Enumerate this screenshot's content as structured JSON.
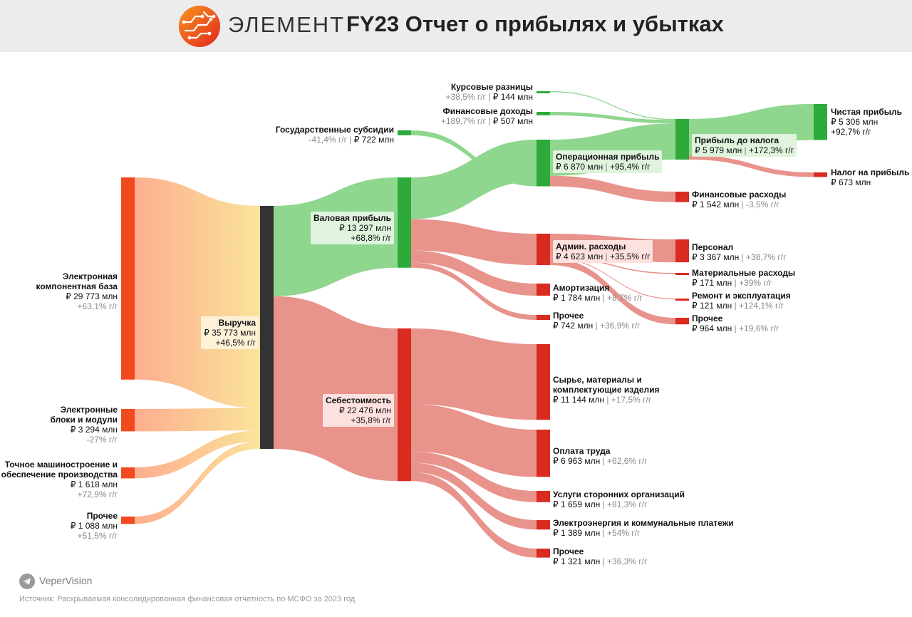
{
  "header": {
    "brand": "ЭЛЕМЕНТ",
    "title": "FY23 Отчет о прибылях и убытках"
  },
  "colors": {
    "revenue_node": "#333333",
    "source_node": "#f04a1e",
    "profit_node": "#2eaa3a",
    "cost_node": "#d92b20",
    "profit_flow": "#8fd68f",
    "cost_flow": "#e8938c"
  },
  "chart_data": {
    "type": "sankey",
    "units": "₽ млн",
    "nodes": [
      {
        "id": "ecb",
        "name": "Электронная компонентная база",
        "lines": [
          "Электронная",
          "компонентная база"
        ],
        "value_text": "₽ 29 773 млн",
        "growth_text": "+63,1% г/г",
        "value": 29773
      },
      {
        "id": "ebm",
        "name": "Электронные блоки и модули",
        "lines": [
          "Электронные",
          "блоки и модули"
        ],
        "value_text": "₽ 3 294 млн",
        "growth_text": "-27% г/г",
        "value": 3294
      },
      {
        "id": "tmo",
        "name": "Точное машиностроение и обеспечение производства",
        "lines": [
          "Точное машиностроение и",
          "обеспечение производства"
        ],
        "value_text": "₽ 1 618 млн",
        "growth_text": "+72,9% г/г",
        "value": 1618
      },
      {
        "id": "oth_in",
        "name": "Прочее",
        "lines": [
          "Прочее"
        ],
        "value_text": "₽ 1 088 млн",
        "growth_text": "+51,5% г/г",
        "value": 1088
      },
      {
        "id": "rev",
        "name": "Выручка",
        "lines": [
          "Выручка"
        ],
        "value_text": "₽ 35 773 млн",
        "growth_text": "+46,5% г/г",
        "value": 35773
      },
      {
        "id": "gp",
        "name": "Валовая прибыль",
        "lines": [
          "Валовая прибыль"
        ],
        "value_text": "₽ 13 297 млн",
        "growth_text": "+68,8% г/г",
        "value": 13297
      },
      {
        "id": "cogs",
        "name": "Себестоимость",
        "lines": [
          "Себестоимость"
        ],
        "value_text": "₽ 22 476 млн",
        "growth_text": "+35,8% г/г",
        "value": 22476
      },
      {
        "id": "gov",
        "name": "Государственные субсидии",
        "lines": [
          "Государственные субсидии"
        ],
        "value_text": "-41,4% г/г | ₽ 722 млн",
        "value": 722
      },
      {
        "id": "fx",
        "name": "Курсовые разницы",
        "lines": [
          "Курсовые разницы"
        ],
        "value_text": "+38,5% г/г | ₽ 144 млн",
        "value": 144
      },
      {
        "id": "fin_inc",
        "name": "Финансовые доходы",
        "lines": [
          "Финансовые доходы"
        ],
        "value_text": "+189,7% г/г | ₽ 507 млн",
        "value": 507
      },
      {
        "id": "op",
        "name": "Операционная прибыль",
        "lines": [
          "Операционная прибыль"
        ],
        "value_text": "₽ 6 870 млн | +95,4% г/г",
        "value": 6870
      },
      {
        "id": "adm",
        "name": "Админ. расходы",
        "lines": [
          "Админ. расходы"
        ],
        "value_text": "₽ 4 623 млн | +35,5% г/г",
        "value": 4623
      },
      {
        "id": "amort",
        "name": "Амортизация",
        "lines": [
          "Амортизация"
        ],
        "value_text": "₽ 1 784 млн | +8,7% г/г",
        "value": 1784
      },
      {
        "id": "oth_op",
        "name": "Прочее",
        "lines": [
          "Прочее"
        ],
        "value_text": "₽ 742 млн | +36,9% г/г",
        "value": 742
      },
      {
        "id": "pbt",
        "name": "Прибыль до налога",
        "lines": [
          "Прибыль до налога"
        ],
        "value_text": "₽ 5 979 млн | +172,3% г/г",
        "value": 5979
      },
      {
        "id": "fin_exp",
        "name": "Финансовые расходы",
        "lines": [
          "Финансовые расходы"
        ],
        "value_text": "₽ 1 542 млн | -3,5% г/г",
        "value": 1542
      },
      {
        "id": "staff",
        "name": "Персонал",
        "lines": [
          "Персонал"
        ],
        "value_text": "₽ 3 367 млн | +38,7% г/г",
        "value": 3367
      },
      {
        "id": "mat",
        "name": "Материальные расходы",
        "lines": [
          "Материальные расходы"
        ],
        "value_text": "₽ 171 млн | +39% г/г",
        "value": 171
      },
      {
        "id": "repair",
        "name": "Ремонт и эксплуатация",
        "lines": [
          "Ремонт и эксплуатация"
        ],
        "value_text": "₽ 121 млн | +124,1% г/г",
        "value": 121
      },
      {
        "id": "oth_adm",
        "name": "Прочее",
        "lines": [
          "Прочее"
        ],
        "value_text": "₽ 964 млн | +19,6% г/г",
        "value": 964
      },
      {
        "id": "net",
        "name": "Чистая прибыль",
        "lines": [
          "Чистая прибыль"
        ],
        "value_text": "₽ 5 306 млн",
        "growth_text": "+92,7% г/г",
        "value": 5306
      },
      {
        "id": "tax",
        "name": "Налог на прибыль",
        "lines": [
          "Налог на прибыль"
        ],
        "value_text": "₽ 673 млн",
        "value": 673
      },
      {
        "id": "raw",
        "name": "Сырье, материалы и комплектующие изделия",
        "lines": [
          "Сырье, материалы и",
          "комплектующие изделия"
        ],
        "value_text": "₽ 11 144 млн | +17,5% г/г",
        "value": 11144
      },
      {
        "id": "labor",
        "name": "Оплата труда",
        "lines": [
          "Оплата труда"
        ],
        "value_text": "₽ 6 963 млн | +62,6% г/г",
        "value": 6963
      },
      {
        "id": "svc",
        "name": "Услуги сторонних организаций",
        "lines": [
          "Услуги сторонних организаций"
        ],
        "value_text": "₽ 1 659 млн | +81,3% г/г",
        "value": 1659
      },
      {
        "id": "util",
        "name": "Электроэнергия и коммунальные платежи",
        "lines": [
          "Электроэнергия и коммунальные платежи"
        ],
        "value_text": "₽ 1 389 млн | +54% г/г",
        "value": 1389
      },
      {
        "id": "oth_cogs",
        "name": "Прочее",
        "lines": [
          "Прочее"
        ],
        "value_text": "₽ 1 321 млн | +36,3% г/г",
        "value": 1321
      }
    ],
    "links": [
      {
        "from": "ecb",
        "to": "rev",
        "value": 29773
      },
      {
        "from": "ebm",
        "to": "rev",
        "value": 3294
      },
      {
        "from": "tmo",
        "to": "rev",
        "value": 1618
      },
      {
        "from": "oth_in",
        "to": "rev",
        "value": 1088
      },
      {
        "from": "rev",
        "to": "gp",
        "value": 13297
      },
      {
        "from": "rev",
        "to": "cogs",
        "value": 22476
      },
      {
        "from": "gp",
        "to": "op",
        "value": 6148
      },
      {
        "from": "gov",
        "to": "op",
        "value": 722
      },
      {
        "from": "gp",
        "to": "adm",
        "value": 4623
      },
      {
        "from": "gp",
        "to": "amort",
        "value": 1784
      },
      {
        "from": "gp",
        "to": "oth_op",
        "value": 742
      },
      {
        "from": "fx",
        "to": "pbt",
        "value": 144
      },
      {
        "from": "fin_inc",
        "to": "pbt",
        "value": 507
      },
      {
        "from": "op",
        "to": "pbt",
        "value": 5328
      },
      {
        "from": "op",
        "to": "fin_exp",
        "value": 1542
      },
      {
        "from": "pbt",
        "to": "net",
        "value": 5306
      },
      {
        "from": "pbt",
        "to": "tax",
        "value": 673
      },
      {
        "from": "adm",
        "to": "staff",
        "value": 3367
      },
      {
        "from": "adm",
        "to": "mat",
        "value": 171
      },
      {
        "from": "adm",
        "to": "repair",
        "value": 121
      },
      {
        "from": "adm",
        "to": "oth_adm",
        "value": 964
      },
      {
        "from": "cogs",
        "to": "raw",
        "value": 11144
      },
      {
        "from": "cogs",
        "to": "labor",
        "value": 6963
      },
      {
        "from": "cogs",
        "to": "svc",
        "value": 1659
      },
      {
        "from": "cogs",
        "to": "util",
        "value": 1389
      },
      {
        "from": "cogs",
        "to": "oth_cogs",
        "value": 1321
      }
    ]
  },
  "footer": {
    "brand": "VeperVision",
    "source": "Источник: Раскрываемая консолидированная финансовая отчетность по МСФО за 2023 год"
  }
}
